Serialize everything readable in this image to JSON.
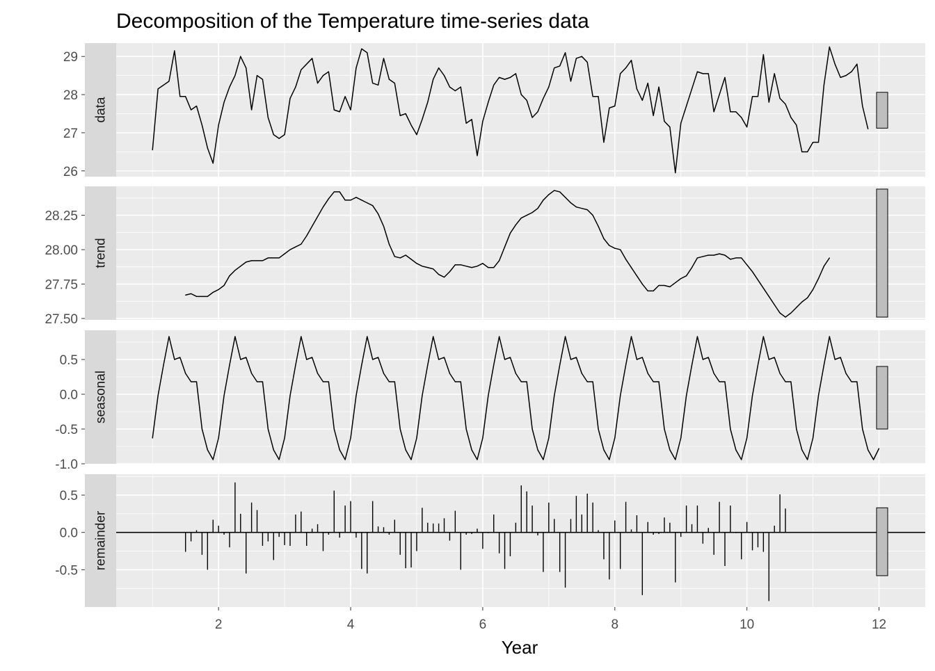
{
  "chart_data": {
    "type": "line",
    "title": "Decomposition of the Temperature time-series data",
    "xlabel": "Year",
    "xlim": [
      0.45,
      12.7
    ],
    "x_ticks": [
      2,
      4,
      6,
      8,
      10,
      12
    ],
    "x_tick_labels": [
      "2",
      "4",
      "6",
      "8",
      "10",
      "12"
    ],
    "x_start": 1.0,
    "x_step": 0.08333,
    "grid": true,
    "legend": "none",
    "colors": {
      "panel_bg": "#EBEBEB",
      "grid": "#FFFFFF",
      "strip_bg": "#D9D9D9",
      "series": "#000000",
      "range_bar": "#BEBEBE"
    },
    "panels": [
      {
        "name": "data",
        "kind": "line",
        "ylim": [
          25.85,
          29.35
        ],
        "y_ticks": [
          26,
          27,
          28,
          29
        ],
        "y_tick_labels": [
          "26",
          "27",
          "28",
          "29"
        ],
        "range_bar": [
          27.12,
          28.06
        ],
        "values": [
          26.55,
          28.15,
          28.25,
          28.35,
          29.15,
          27.95,
          27.95,
          27.6,
          27.7,
          27.2,
          26.6,
          26.2,
          27.2,
          27.8,
          28.2,
          28.5,
          29.0,
          28.7,
          27.6,
          28.5,
          28.4,
          27.4,
          26.95,
          26.85,
          26.95,
          27.9,
          28.2,
          28.65,
          28.8,
          28.95,
          28.3,
          28.5,
          28.6,
          27.6,
          27.55,
          27.95,
          27.6,
          28.7,
          29.2,
          29.1,
          28.3,
          28.25,
          28.95,
          28.4,
          28.3,
          27.45,
          27.5,
          27.2,
          26.95,
          27.35,
          27.8,
          28.4,
          28.7,
          28.5,
          28.2,
          28.1,
          28.2,
          27.25,
          27.35,
          26.4,
          27.3,
          27.8,
          28.25,
          28.45,
          28.4,
          28.45,
          28.55,
          28.0,
          27.85,
          27.4,
          27.55,
          27.9,
          28.2,
          28.7,
          28.75,
          29.1,
          28.35,
          28.95,
          29.0,
          28.85,
          27.95,
          27.95,
          26.75,
          27.65,
          27.7,
          28.55,
          28.7,
          28.9,
          28.15,
          27.85,
          28.3,
          27.45,
          28.2,
          27.3,
          27.15,
          25.95,
          27.25,
          27.7,
          28.15,
          28.6,
          28.55,
          28.55,
          27.55,
          28.0,
          28.45,
          27.55,
          27.55,
          27.4,
          27.15,
          27.95,
          27.95,
          29.05,
          27.8,
          28.55,
          27.9,
          27.75,
          27.4,
          27.2,
          26.5,
          26.5,
          26.75,
          26.75,
          28.25,
          29.25,
          28.8,
          28.45,
          28.5,
          28.6,
          28.8,
          27.7,
          27.1
        ]
      },
      {
        "name": "trend",
        "kind": "line",
        "ylim": [
          27.49,
          28.46
        ],
        "y_ticks": [
          27.5,
          27.75,
          28.0,
          28.25
        ],
        "y_tick_labels": [
          "27.50",
          "27.75",
          "28.00",
          "28.25"
        ],
        "range_bar": [
          27.51,
          28.44
        ],
        "values": [
          null,
          null,
          null,
          null,
          null,
          null,
          27.67,
          27.68,
          27.66,
          27.66,
          27.66,
          27.69,
          27.71,
          27.74,
          27.81,
          27.85,
          27.88,
          27.91,
          27.92,
          27.92,
          27.92,
          27.94,
          27.94,
          27.94,
          27.97,
          28.0,
          28.02,
          28.04,
          28.1,
          28.17,
          28.24,
          28.31,
          28.37,
          28.42,
          28.42,
          28.36,
          28.36,
          28.38,
          28.36,
          28.34,
          28.32,
          28.26,
          28.17,
          28.04,
          27.95,
          27.94,
          27.96,
          27.93,
          27.9,
          27.88,
          27.87,
          27.86,
          27.82,
          27.8,
          27.84,
          27.89,
          27.89,
          27.88,
          27.87,
          27.88,
          27.9,
          27.87,
          27.87,
          27.92,
          28.02,
          28.12,
          28.18,
          28.23,
          28.25,
          28.27,
          28.3,
          28.36,
          28.4,
          28.43,
          28.42,
          28.38,
          28.34,
          28.31,
          28.3,
          28.29,
          28.25,
          28.17,
          28.08,
          28.03,
          28.01,
          28.0,
          27.93,
          27.87,
          27.81,
          27.75,
          27.7,
          27.7,
          27.74,
          27.74,
          27.73,
          27.76,
          27.79,
          27.81,
          27.87,
          27.94,
          27.95,
          27.96,
          27.96,
          27.97,
          27.96,
          27.93,
          27.94,
          27.94,
          27.89,
          27.84,
          27.78,
          27.72,
          27.66,
          27.6,
          27.54,
          27.51,
          27.54,
          27.58,
          27.62,
          27.65,
          27.71,
          27.79,
          27.88,
          27.94
        ]
      },
      {
        "name": "seasonal",
        "kind": "line",
        "ylim": [
          -1.0,
          0.92
        ],
        "y_ticks": [
          -1.0,
          -0.5,
          0.0,
          0.5
        ],
        "y_tick_labels": [
          "-1.0",
          "-0.5",
          "0.0",
          "0.5"
        ],
        "range_bar": [
          -0.5,
          0.4
        ],
        "pattern": [
          -0.63,
          -0.02,
          0.42,
          0.83,
          0.5,
          0.53,
          0.3,
          0.18,
          0.18,
          -0.5,
          -0.8,
          -0.94
        ],
        "pattern_repeats": 11,
        "pattern_last": -0.78
      },
      {
        "name": "remainder",
        "kind": "bar",
        "ylim": [
          -1.0,
          0.78
        ],
        "y_ticks": [
          -0.5,
          0.0,
          0.5
        ],
        "y_tick_labels": [
          "-0.5",
          "0.0",
          "0.5"
        ],
        "range_bar": [
          -0.58,
          0.33
        ],
        "values": [
          null,
          null,
          null,
          null,
          null,
          null,
          -0.26,
          -0.12,
          0.03,
          -0.3,
          -0.5,
          0.17,
          0.09,
          -0.03,
          -0.2,
          0.67,
          0.25,
          -0.55,
          0.4,
          0.3,
          -0.18,
          -0.12,
          -0.37,
          -0.06,
          -0.17,
          -0.18,
          0.24,
          0.28,
          -0.18,
          0.05,
          0.11,
          -0.25,
          -0.03,
          0.56,
          -0.07,
          0.36,
          0.42,
          -0.07,
          -0.49,
          -0.55,
          0.42,
          0.08,
          0.07,
          -0.03,
          0.17,
          -0.3,
          -0.48,
          -0.47,
          -0.25,
          0.33,
          0.13,
          0.12,
          0.12,
          0.19,
          -0.11,
          0.29,
          -0.5,
          -0.03,
          -0.02,
          0.05,
          -0.22,
          -0.01,
          0.24,
          -0.28,
          -0.49,
          -0.32,
          0.13,
          0.63,
          0.55,
          0.36,
          -0.04,
          -0.53,
          0.4,
          0.18,
          -0.53,
          -0.74,
          0.18,
          0.49,
          0.24,
          0.52,
          0.4,
          0.03,
          -0.36,
          -0.63,
          0.16,
          -0.49,
          0.41,
          0.04,
          0.23,
          -0.84,
          0.14,
          -0.03,
          -0.02,
          0.2,
          0.13,
          -0.67,
          -0.06,
          0.36,
          0.11,
          0.36,
          -0.15,
          0.06,
          -0.3,
          0.41,
          -0.45,
          0.36,
          -0.01,
          -0.36,
          0.14,
          -0.24,
          -0.2,
          -0.26,
          -0.92,
          0.09,
          0.51,
          0.32
        ]
      }
    ]
  }
}
